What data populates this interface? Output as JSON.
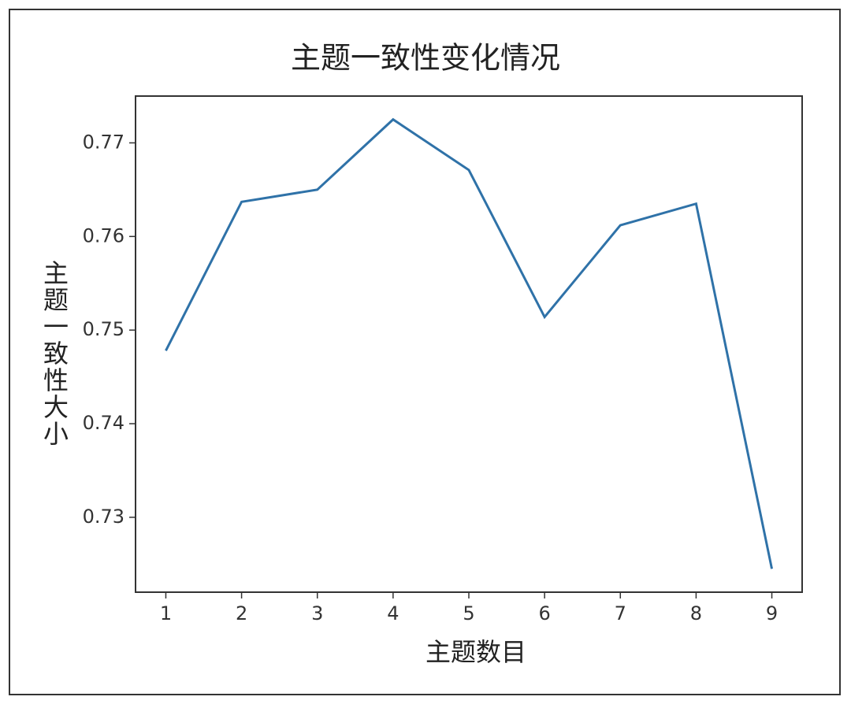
{
  "chart_data": {
    "type": "line",
    "title": "主题一致性变化情况",
    "x_label": "主题数目",
    "y_label": "主题一致性大小",
    "x": [
      1,
      2,
      3,
      4,
      5,
      6,
      7,
      8,
      9
    ],
    "series": [
      {
        "name": "主题一致性",
        "color": "#2f72a8",
        "values": [
          0.7478,
          0.7637,
          0.765,
          0.7725,
          0.7671,
          0.7514,
          0.7612,
          0.7635,
          0.7245
        ]
      }
    ],
    "xlim": [
      0.6,
      9.4
    ],
    "xticks": [
      1,
      2,
      3,
      4,
      5,
      6,
      7,
      8,
      9
    ],
    "ylim": [
      0.722,
      0.775
    ],
    "yticks": [
      0.73,
      0.74,
      0.75,
      0.76,
      0.77
    ]
  }
}
